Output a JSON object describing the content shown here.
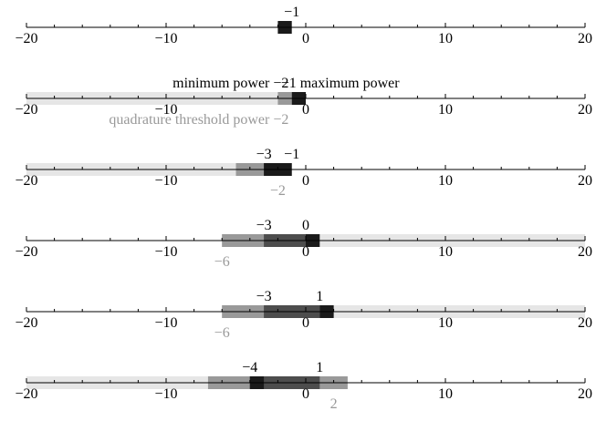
{
  "chart_data": {
    "type": "bar",
    "title": "",
    "xlabel": "",
    "ylabel": "",
    "xlim": [
      -20,
      20
    ],
    "x_ticks": [
      -20,
      -10,
      0,
      10,
      20
    ],
    "x_tick_labels": [
      "−20",
      "−10",
      "0",
      "10",
      "20"
    ],
    "colors": {
      "axis": "#000000",
      "dark": "#1a1a1a",
      "mid_dark": "#4d4d4d",
      "mid": "#999999",
      "light": "#e6e6e6"
    },
    "rows": [
      {
        "segments": [
          {
            "from": -2,
            "to": -1,
            "color": "dark"
          }
        ],
        "top_labels": [
          {
            "value": -1,
            "text": "−1"
          }
        ],
        "bottom_labels": []
      },
      {
        "segments": [
          {
            "from": -20,
            "to": -2,
            "color": "light"
          },
          {
            "from": -2,
            "to": -1,
            "color": "mid"
          },
          {
            "from": -1,
            "to": 0,
            "color": "dark"
          }
        ],
        "top_labels": [
          {
            "value": -2,
            "text": "minimum power −2",
            "align": "end"
          },
          {
            "value": -1,
            "text": "−1 maximum power",
            "align": "start"
          }
        ],
        "bottom_labels": [
          {
            "value": -2,
            "text": "quadrature threshold power −2",
            "align": "end"
          }
        ]
      },
      {
        "segments": [
          {
            "from": -20,
            "to": -5,
            "color": "light"
          },
          {
            "from": -5,
            "to": -1,
            "color": "mid"
          },
          {
            "from": -3,
            "to": -1,
            "color": "dark"
          }
        ],
        "top_labels": [
          {
            "value": -3,
            "text": "−3"
          },
          {
            "value": -1,
            "text": "−1"
          }
        ],
        "bottom_labels": [
          {
            "value": -2,
            "text": "−2"
          }
        ]
      },
      {
        "segments": [
          {
            "from": -6,
            "to": 20,
            "color": "light"
          },
          {
            "from": -6,
            "to": 0,
            "color": "mid"
          },
          {
            "from": -3,
            "to": 0,
            "color": "mid_dark"
          },
          {
            "from": 0,
            "to": 1,
            "color": "dark"
          }
        ],
        "top_labels": [
          {
            "value": -3,
            "text": "−3"
          },
          {
            "value": 0,
            "text": "0"
          }
        ],
        "bottom_labels": [
          {
            "value": -6,
            "text": "−6"
          }
        ]
      },
      {
        "segments": [
          {
            "from": -6,
            "to": 20,
            "color": "light"
          },
          {
            "from": -6,
            "to": 2,
            "color": "mid"
          },
          {
            "from": -3,
            "to": 1,
            "color": "mid_dark"
          },
          {
            "from": 1,
            "to": 2,
            "color": "dark"
          }
        ],
        "top_labels": [
          {
            "value": -3,
            "text": "−3"
          },
          {
            "value": 1,
            "text": "1"
          }
        ],
        "bottom_labels": [
          {
            "value": -6,
            "text": "−6"
          }
        ]
      },
      {
        "segments": [
          {
            "from": -20,
            "to": -7,
            "color": "light"
          },
          {
            "from": -7,
            "to": 3,
            "color": "mid"
          },
          {
            "from": -4,
            "to": 1,
            "color": "mid_dark"
          },
          {
            "from": -4,
            "to": -3,
            "color": "dark"
          }
        ],
        "top_labels": [
          {
            "value": -4,
            "text": "−4"
          },
          {
            "value": 1,
            "text": "1"
          }
        ],
        "bottom_labels": [
          {
            "value": 2,
            "text": "2"
          }
        ]
      }
    ]
  }
}
